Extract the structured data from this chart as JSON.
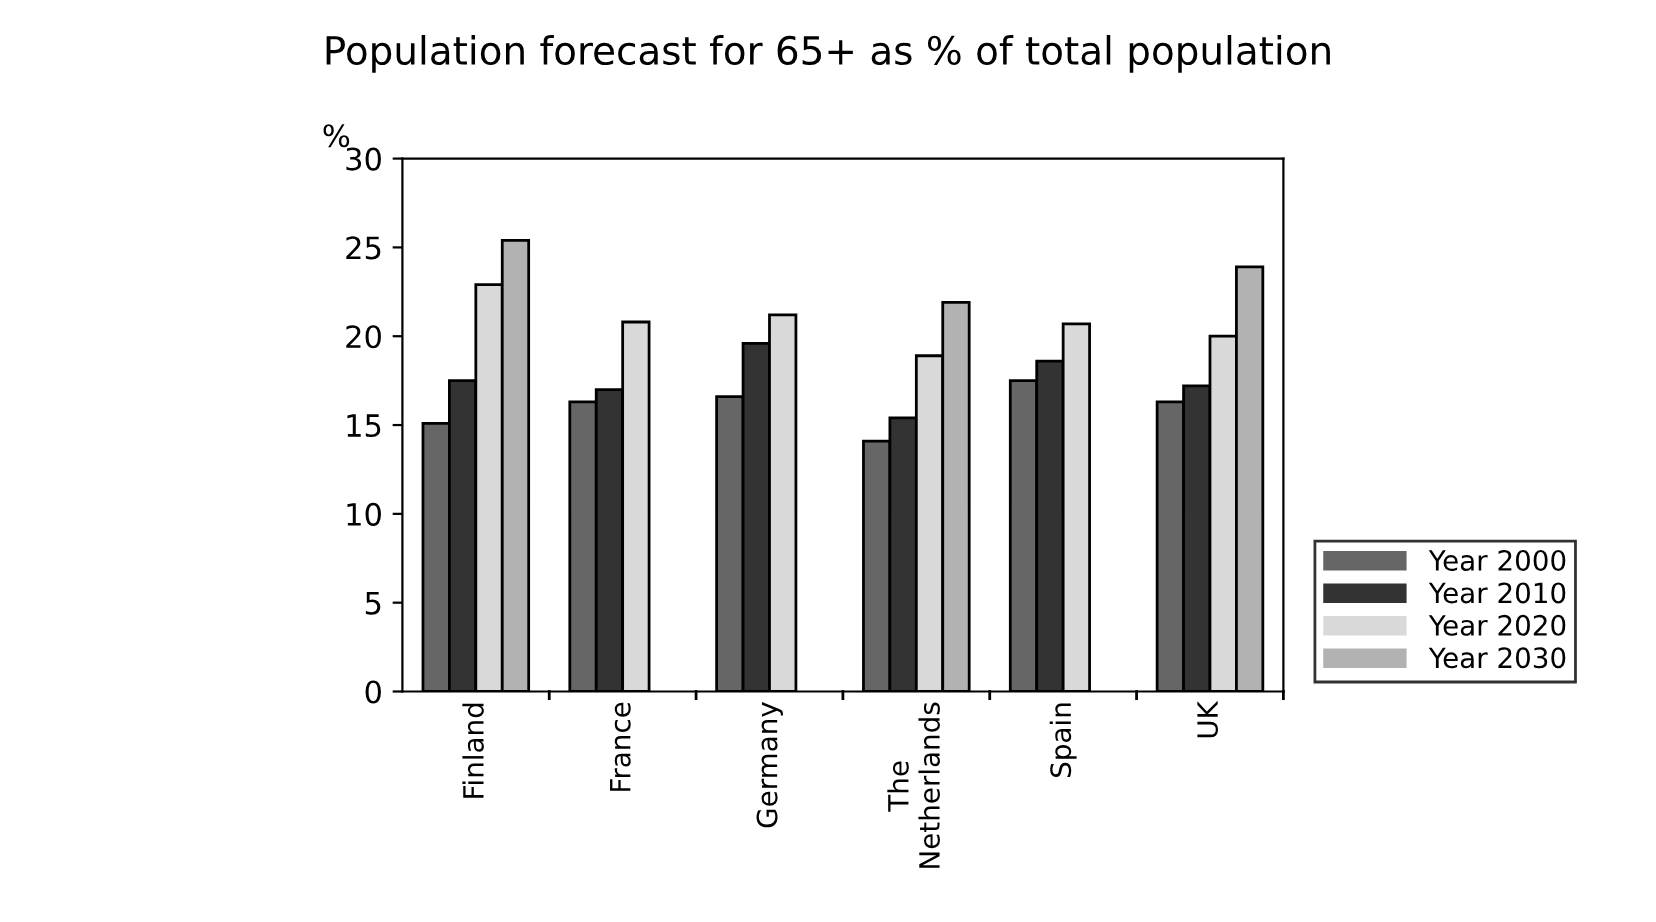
{
  "chart_data": {
    "type": "bar",
    "title": "Population forecast for 65+ as % of total population",
    "ylabel": "%",
    "categories": [
      "Finland",
      "France",
      "Germany",
      "The\nNetherlands",
      "Spain",
      "UK"
    ],
    "series": [
      {
        "name": "Year 2000",
        "color": "#666666",
        "values": [
          15.1,
          16.3,
          16.6,
          14.1,
          17.5,
          16.3
        ]
      },
      {
        "name": "Year 2010",
        "color": "#333333",
        "values": [
          17.5,
          17.0,
          19.6,
          15.4,
          18.6,
          17.2
        ]
      },
      {
        "name": "Year 2020",
        "color": "#d9d9d9",
        "values": [
          22.9,
          20.8,
          21.2,
          18.9,
          20.7,
          20.0
        ]
      },
      {
        "name": "Year 2030",
        "color": "#b2b2b2",
        "values": [
          25.4,
          null,
          null,
          21.9,
          null,
          23.9
        ]
      }
    ],
    "ylim": [
      0,
      30
    ],
    "yticks": [
      0,
      5,
      10,
      15,
      20,
      25,
      30
    ],
    "grid": false,
    "legend": "right"
  }
}
